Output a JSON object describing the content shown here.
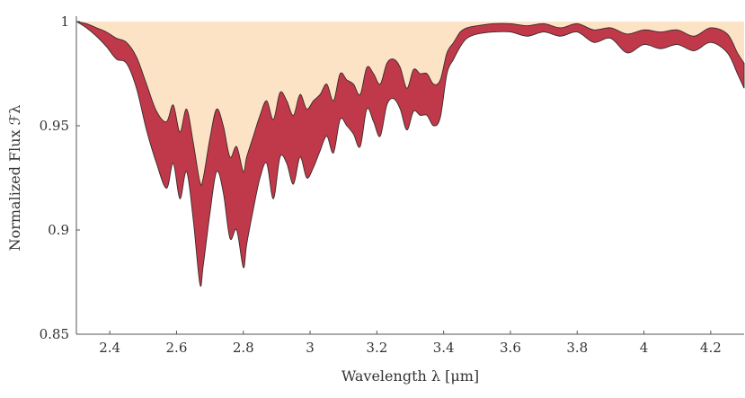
{
  "chart_data": {
    "type": "area",
    "xlabel": "Wavelength λ [μm]",
    "ylabel": "Normalized Flux ℱλ",
    "xlim": [
      2.3,
      4.3
    ],
    "ylim": [
      0.85,
      1.0
    ],
    "x_ticks": [
      "2.4",
      "2.6",
      "2.8",
      "3",
      "3.2",
      "3.4",
      "3.6",
      "3.8",
      "4",
      "4.2"
    ],
    "y_ticks": [
      "0.85",
      "0.9",
      "0.95",
      "1"
    ],
    "grid": false,
    "legend": "none",
    "colors": {
      "band": "#c0394a",
      "band_edge": "#3a2a2a",
      "fill_above": "#fde3c6",
      "axis": "#555555"
    },
    "series": [
      {
        "x": [
          2.3,
          2.33,
          2.36,
          2.39,
          2.42,
          2.45,
          2.48,
          2.51,
          2.54,
          2.57,
          2.59,
          2.61,
          2.63,
          2.65,
          2.67,
          2.68,
          2.7,
          2.72,
          2.74,
          2.76,
          2.78,
          2.8,
          2.81,
          2.83,
          2.85,
          2.87,
          2.89,
          2.91,
          2.93,
          2.95,
          2.97,
          2.99,
          3.01,
          3.03,
          3.05,
          3.07,
          3.09,
          3.11,
          3.13,
          3.15,
          3.17,
          3.19,
          3.21,
          3.23,
          3.25,
          3.27,
          3.29,
          3.31,
          3.33,
          3.35,
          3.37,
          3.39,
          3.41,
          3.43,
          3.45,
          3.47,
          3.5,
          3.55,
          3.6,
          3.65,
          3.7,
          3.75,
          3.8,
          3.85,
          3.9,
          3.95,
          4.0,
          4.05,
          4.1,
          4.15,
          4.2,
          4.25,
          4.28,
          4.3
        ],
        "upper": [
          1.0,
          0.999,
          0.997,
          0.995,
          0.992,
          0.99,
          0.983,
          0.97,
          0.957,
          0.952,
          0.96,
          0.947,
          0.958,
          0.942,
          0.923,
          0.925,
          0.944,
          0.958,
          0.95,
          0.935,
          0.94,
          0.928,
          0.935,
          0.945,
          0.955,
          0.962,
          0.953,
          0.966,
          0.962,
          0.955,
          0.965,
          0.958,
          0.962,
          0.965,
          0.97,
          0.962,
          0.975,
          0.972,
          0.97,
          0.965,
          0.978,
          0.975,
          0.97,
          0.98,
          0.982,
          0.978,
          0.968,
          0.977,
          0.975,
          0.975,
          0.97,
          0.972,
          0.985,
          0.99,
          0.995,
          0.997,
          0.998,
          0.999,
          0.999,
          0.998,
          0.999,
          0.997,
          0.999,
          0.996,
          0.997,
          0.994,
          0.996,
          0.995,
          0.996,
          0.993,
          0.997,
          0.994,
          0.985,
          0.98
        ],
        "lower": [
          1.0,
          0.997,
          0.993,
          0.988,
          0.982,
          0.98,
          0.968,
          0.948,
          0.932,
          0.92,
          0.932,
          0.915,
          0.928,
          0.905,
          0.874,
          0.883,
          0.908,
          0.928,
          0.918,
          0.896,
          0.9,
          0.882,
          0.893,
          0.91,
          0.925,
          0.932,
          0.915,
          0.935,
          0.932,
          0.922,
          0.935,
          0.925,
          0.93,
          0.938,
          0.945,
          0.937,
          0.953,
          0.95,
          0.946,
          0.94,
          0.958,
          0.952,
          0.945,
          0.96,
          0.963,
          0.958,
          0.948,
          0.957,
          0.955,
          0.955,
          0.95,
          0.954,
          0.975,
          0.982,
          0.988,
          0.992,
          0.994,
          0.995,
          0.995,
          0.993,
          0.995,
          0.993,
          0.995,
          0.99,
          0.992,
          0.985,
          0.989,
          0.987,
          0.989,
          0.986,
          0.99,
          0.985,
          0.975,
          0.968
        ]
      }
    ]
  }
}
